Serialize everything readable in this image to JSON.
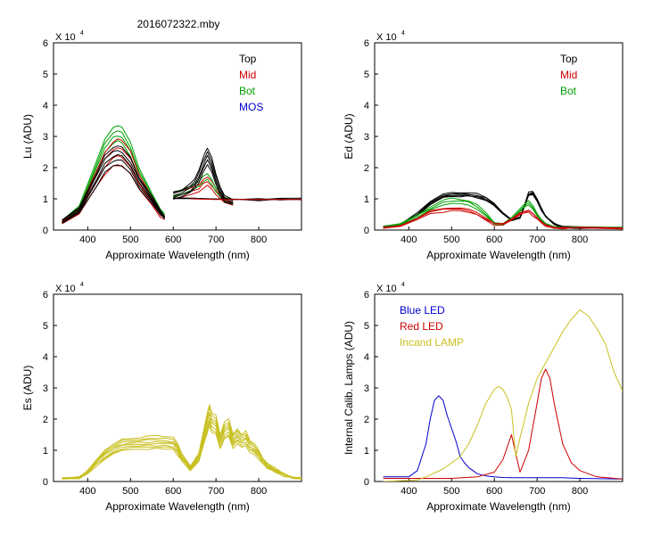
{
  "page": {
    "title": "2016072322.mby"
  },
  "colors": {
    "black": "#000000",
    "red": "#cc0000",
    "green": "#00a000",
    "blue": "#0000cc",
    "olive": "#c8c020"
  },
  "chart_data": [
    {
      "id": "lu",
      "type": "line",
      "xlabel": "Approximate Wavelength (nm)",
      "ylabel": "Lu (ADU)",
      "exponent_label": "X 10",
      "exponent_power": "4",
      "xlim": [
        320,
        900
      ],
      "ylim": [
        0,
        6
      ],
      "xticks": [
        400,
        500,
        600,
        700,
        800
      ],
      "yticks": [
        0,
        1,
        2,
        3,
        4,
        5,
        6
      ],
      "legend": [
        {
          "label": "Top",
          "color": "#000000"
        },
        {
          "label": "Mid",
          "color": "#cc0000"
        },
        {
          "label": "Bot",
          "color": "#00a000"
        },
        {
          "label": "MOS",
          "color": "#0000cc"
        }
      ],
      "series": [
        {
          "name": "Bot",
          "color": "#00a000",
          "x": [
            340,
            380,
            420,
            440,
            460,
            470,
            480,
            500,
            520,
            550,
            570,
            580
          ],
          "values": [
            0.3,
            0.75,
            2.2,
            2.9,
            3.3,
            3.35,
            3.3,
            2.8,
            2.0,
            1.2,
            0.65,
            0.5
          ],
          "scale_min": 0.85,
          "copies": 4
        },
        {
          "name": "Mid",
          "color": "#cc0000",
          "x": [
            340,
            380,
            420,
            440,
            460,
            470,
            480,
            500,
            520,
            550,
            570,
            580
          ],
          "values": [
            0.3,
            0.7,
            1.9,
            2.5,
            2.85,
            2.9,
            2.85,
            2.5,
            1.8,
            1.1,
            0.6,
            0.45
          ],
          "scale_min": 0.72,
          "copies": 4
        },
        {
          "name": "Top",
          "color": "#000000",
          "x": [
            340,
            380,
            420,
            440,
            460,
            470,
            480,
            500,
            520,
            550,
            570,
            580
          ],
          "values": [
            0.3,
            0.7,
            1.8,
            2.4,
            2.65,
            2.7,
            2.65,
            2.3,
            1.7,
            1.1,
            0.65,
            0.45
          ],
          "scale_min": 0.78,
          "copies": 5
        },
        {
          "name": "Mid",
          "color": "#cc0000",
          "x": [
            600,
            620,
            640,
            660,
            670,
            680,
            690,
            700,
            720,
            740
          ],
          "values": [
            1.2,
            1.25,
            1.35,
            1.45,
            1.6,
            1.7,
            1.55,
            1.35,
            1.05,
            0.95
          ],
          "scale_min": 0.85,
          "copies": 3
        },
        {
          "name": "Bot",
          "color": "#00a000",
          "x": [
            600,
            620,
            640,
            660,
            670,
            680,
            690,
            700,
            720,
            740
          ],
          "values": [
            1.2,
            1.3,
            1.4,
            1.55,
            1.7,
            1.8,
            1.6,
            1.35,
            1.05,
            0.95
          ],
          "scale_min": 0.9,
          "copies": 2
        },
        {
          "name": "Top",
          "color": "#000000",
          "x": [
            600,
            620,
            640,
            650,
            660,
            670,
            675,
            680,
            690,
            700,
            710,
            720,
            740
          ],
          "values": [
            1.25,
            1.3,
            1.5,
            1.65,
            1.9,
            2.3,
            2.5,
            2.65,
            2.3,
            1.8,
            1.4,
            1.1,
            1.0
          ],
          "scale_min": 0.8,
          "copies": 5
        },
        {
          "name": "Top",
          "color": "#000000",
          "x": [
            600,
            650,
            700,
            750,
            800,
            850,
            900
          ],
          "values": [
            1.05,
            1.02,
            1.0,
            1.0,
            1.0,
            1.0,
            1.0
          ],
          "scale_min": 0.97,
          "copies": 3
        },
        {
          "name": "Mid",
          "color": "#cc0000",
          "x": [
            640,
            700,
            750,
            800,
            850,
            900
          ],
          "values": [
            1.0,
            0.98,
            0.98,
            0.98,
            0.98,
            0.98
          ],
          "scale_min": 0.99,
          "copies": 1
        }
      ]
    },
    {
      "id": "ed",
      "type": "line",
      "xlabel": "Approximate Wavelength (nm)",
      "ylabel": "Ed  (ADU)",
      "exponent_label": "X 10",
      "exponent_power": "4",
      "xlim": [
        320,
        900
      ],
      "ylim": [
        0,
        6
      ],
      "xticks": [
        400,
        500,
        600,
        700,
        800
      ],
      "yticks": [
        0,
        1,
        2,
        3,
        4,
        5,
        6
      ],
      "legend": [
        {
          "label": "Top",
          "color": "#000000"
        },
        {
          "label": "Mid",
          "color": "#cc0000"
        },
        {
          "label": "Bot",
          "color": "#00a000"
        }
      ],
      "series": [
        {
          "name": "Top",
          "color": "#000000",
          "x": [
            340,
            380,
            420,
            450,
            480,
            500,
            520,
            540,
            560,
            580,
            600,
            620,
            640,
            660,
            670,
            680,
            690,
            700,
            710,
            720,
            740,
            760,
            800,
            900
          ],
          "values": [
            0.1,
            0.2,
            0.55,
            0.9,
            1.15,
            1.2,
            1.2,
            1.2,
            1.15,
            1.05,
            0.85,
            0.55,
            0.35,
            0.4,
            0.8,
            1.2,
            1.25,
            1.0,
            0.7,
            0.45,
            0.2,
            0.1,
            0.08,
            0.08
          ],
          "scale_min": 0.9,
          "copies": 5
        },
        {
          "name": "Bot",
          "color": "#00a000",
          "x": [
            340,
            380,
            420,
            450,
            480,
            500,
            520,
            540,
            560,
            580,
            600,
            620,
            640,
            660,
            670,
            680,
            690,
            700,
            710,
            720,
            740,
            760,
            800,
            900
          ],
          "values": [
            0.1,
            0.2,
            0.5,
            0.75,
            0.95,
            1.0,
            1.0,
            0.95,
            0.8,
            0.55,
            0.25,
            0.2,
            0.4,
            0.7,
            0.85,
            0.95,
            0.8,
            0.55,
            0.35,
            0.2,
            0.1,
            0.08,
            0.08,
            0.08
          ],
          "scale_min": 0.85,
          "copies": 3
        },
        {
          "name": "Mid",
          "color": "#cc0000",
          "x": [
            340,
            380,
            420,
            450,
            480,
            500,
            520,
            540,
            560,
            580,
            600,
            620,
            640,
            660,
            670,
            680,
            690,
            700,
            710,
            720,
            740,
            760,
            800,
            900
          ],
          "values": [
            0.08,
            0.15,
            0.4,
            0.6,
            0.7,
            0.72,
            0.7,
            0.65,
            0.55,
            0.4,
            0.2,
            0.2,
            0.35,
            0.55,
            0.62,
            0.65,
            0.55,
            0.4,
            0.25,
            0.15,
            0.08,
            0.07,
            0.07,
            0.07
          ],
          "scale_min": 0.85,
          "copies": 3
        }
      ]
    },
    {
      "id": "es",
      "type": "line",
      "xlabel": "Approximate Wavelength (nm)",
      "ylabel": "Es  (ADU)",
      "exponent_label": "X 10",
      "exponent_power": "4",
      "xlim": [
        320,
        900
      ],
      "ylim": [
        0,
        6
      ],
      "xticks": [
        400,
        500,
        600,
        700,
        800
      ],
      "yticks": [
        0,
        1,
        2,
        3,
        4,
        5,
        6
      ],
      "legend": [],
      "series": [
        {
          "name": "Es",
          "color": "#c8c020",
          "x": [
            340,
            380,
            400,
            420,
            440,
            460,
            480,
            500,
            520,
            540,
            560,
            580,
            600,
            610,
            620,
            640,
            660,
            670,
            680,
            685,
            690,
            700,
            710,
            720,
            730,
            740,
            750,
            760,
            770,
            780,
            790,
            800,
            810,
            820,
            840,
            860,
            880,
            900
          ],
          "values": [
            0.12,
            0.15,
            0.35,
            0.7,
            1.0,
            1.2,
            1.35,
            1.4,
            1.42,
            1.45,
            1.45,
            1.45,
            1.4,
            1.2,
            0.9,
            0.5,
            0.9,
            1.6,
            2.2,
            2.45,
            2.2,
            2.1,
            1.5,
            1.9,
            2.0,
            1.5,
            1.7,
            1.5,
            1.6,
            1.3,
            1.2,
            1.0,
            0.75,
            0.6,
            0.4,
            0.25,
            0.15,
            0.12
          ],
          "scale_min": 0.72,
          "copies": 8
        }
      ]
    },
    {
      "id": "lamps",
      "type": "line",
      "xlabel": "Approximate Wavelength (nm)",
      "ylabel": "Internal Calib. Lamps (ADU)",
      "exponent_label": "X 10",
      "exponent_power": "4",
      "xlim": [
        320,
        900
      ],
      "ylim": [
        0,
        6
      ],
      "xticks": [
        400,
        500,
        600,
        700,
        800
      ],
      "yticks": [
        0,
        1,
        2,
        3,
        4,
        5,
        6
      ],
      "legend": [
        {
          "label": "Blue LED",
          "color": "#0000cc"
        },
        {
          "label": "Red LED",
          "color": "#cc0000"
        },
        {
          "label": "Incand LAMP",
          "color": "#c8c020"
        }
      ],
      "series": [
        {
          "name": "Blue LED",
          "color": "#0000cc",
          "x": [
            340,
            400,
            420,
            440,
            450,
            460,
            470,
            480,
            490,
            500,
            510,
            520,
            530,
            540,
            560,
            580,
            600,
            620,
            640,
            660,
            700,
            760,
            800,
            900
          ],
          "values": [
            0.15,
            0.15,
            0.35,
            1.2,
            2.0,
            2.6,
            2.75,
            2.6,
            2.1,
            1.7,
            1.3,
            0.8,
            0.6,
            0.45,
            0.25,
            0.18,
            0.15,
            0.13,
            0.12,
            0.12,
            0.12,
            0.12,
            0.1,
            0.08
          ],
          "scale_min": 1.0,
          "copies": 1
        },
        {
          "name": "Red LED",
          "color": "#cc0000",
          "x": [
            340,
            420,
            500,
            560,
            600,
            620,
            640,
            660,
            680,
            700,
            710,
            720,
            730,
            740,
            760,
            780,
            800,
            840,
            900
          ],
          "values": [
            0.1,
            0.1,
            0.1,
            0.15,
            0.3,
            0.7,
            1.5,
            0.3,
            1.0,
            2.5,
            3.3,
            3.6,
            3.3,
            2.5,
            1.2,
            0.6,
            0.35,
            0.15,
            0.08
          ],
          "scale_min": 1.0,
          "copies": 1
        },
        {
          "name": "Incand LAMP",
          "color": "#c8c020",
          "x": [
            340,
            420,
            440,
            480,
            500,
            520,
            540,
            560,
            580,
            600,
            610,
            620,
            630,
            640,
            650,
            660,
            680,
            700,
            720,
            740,
            760,
            780,
            800,
            820,
            840,
            860,
            880,
            900
          ],
          "values": [
            0.0,
            0.05,
            0.15,
            0.4,
            0.6,
            0.8,
            1.2,
            1.8,
            2.5,
            2.95,
            3.05,
            2.95,
            2.7,
            2.3,
            0.8,
            1.4,
            2.5,
            3.3,
            3.8,
            4.3,
            4.8,
            5.2,
            5.5,
            5.3,
            4.9,
            4.4,
            3.5,
            2.9
          ],
          "scale_min": 1.0,
          "copies": 1
        }
      ]
    }
  ]
}
